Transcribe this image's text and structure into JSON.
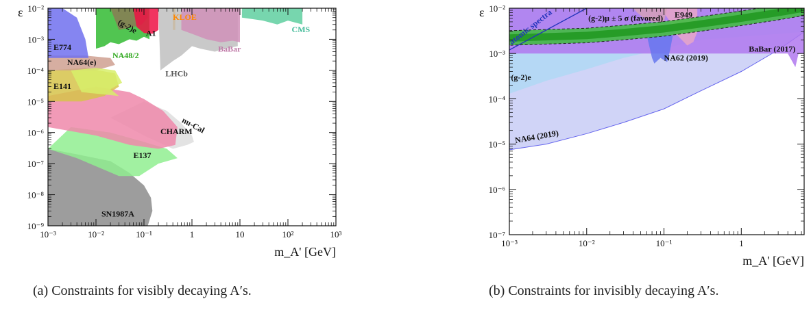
{
  "captions": {
    "a": "(a) Constraints for visibly decaying A′s.",
    "b": "(b) Constraints for invisibly decaying A′s."
  },
  "chart_data": [
    {
      "type": "area",
      "title": "",
      "xlabel": "m_A' [GeV]",
      "ylabel": "ε",
      "x_scale": "log",
      "y_scale": "log",
      "xlim": [
        0.001,
        1000
      ],
      "ylim": [
        1e-09,
        0.01
      ],
      "x_ticks": [
        {
          "v": 0.001,
          "label": "10⁻³"
        },
        {
          "v": 0.01,
          "label": "10⁻²"
        },
        {
          "v": 0.1,
          "label": "10⁻¹"
        },
        {
          "v": 1,
          "label": "1"
        },
        {
          "v": 10,
          "label": "10"
        },
        {
          "v": 100,
          "label": "10²"
        },
        {
          "v": 1000,
          "label": "10³"
        }
      ],
      "y_ticks": [
        {
          "v": 1e-09,
          "label": "10⁻⁹"
        },
        {
          "v": 1e-08,
          "label": "10⁻⁸"
        },
        {
          "v": 1e-07,
          "label": "10⁻⁷"
        },
        {
          "v": 1e-06,
          "label": "10⁻⁶"
        },
        {
          "v": 1e-05,
          "label": "10⁻⁵"
        },
        {
          "v": 0.0001,
          "label": "10⁻⁴"
        },
        {
          "v": 0.001,
          "label": "10⁻³"
        },
        {
          "v": 0.01,
          "label": "10⁻²"
        }
      ],
      "regions": [
        {
          "name": "SN1987A",
          "color": "#8c8c8c",
          "label_color": "#111111",
          "label_at": [
            0.013,
            2e-09
          ],
          "polygon": [
            [
              0.001,
              1e-09
            ],
            [
              0.001,
              3e-07
            ],
            [
              0.004,
              2e-07
            ],
            [
              0.02,
              1.2e-07
            ],
            [
              0.05,
              5e-08
            ],
            [
              0.1,
              2e-08
            ],
            [
              0.14,
              8e-09
            ],
            [
              0.15,
              3e-09
            ],
            [
              0.12,
              1e-09
            ]
          ]
        },
        {
          "name": "E137",
          "color": "#90ee90",
          "label_color": "#111111",
          "label_at": [
            0.06,
            1.5e-07
          ],
          "polygon": [
            [
              0.001,
              3e-07
            ],
            [
              0.003,
              1.5e-06
            ],
            [
              0.02,
              1e-06
            ],
            [
              0.1,
              5e-07
            ],
            [
              0.3,
              3e-07
            ],
            [
              0.5,
              1.5e-07
            ],
            [
              0.2,
              1e-07
            ],
            [
              0.08,
              4e-08
            ],
            [
              0.03,
              4e-08
            ],
            [
              0.004,
              1.5e-07
            ]
          ]
        },
        {
          "name": "nu-Cal",
          "color": "#dedede",
          "label_color": "#111111",
          "label_at": [
            0.6,
            2.2e-06
          ],
          "rotate": 28,
          "polygon": [
            [
              0.02,
              3e-06
            ],
            [
              0.1,
              1e-05
            ],
            [
              0.3,
              5e-06
            ],
            [
              0.6,
              2e-06
            ],
            [
              1.0,
              8e-07
            ],
            [
              1.1,
              5e-07
            ],
            [
              0.8,
              4e-07
            ],
            [
              0.4,
              3e-07
            ],
            [
              0.1,
              8e-07
            ]
          ]
        },
        {
          "name": "CHARM",
          "color": "#ee88aa",
          "label_color": "#111111",
          "label_at": [
            0.22,
            9e-07
          ],
          "polygon": [
            [
              0.001,
              1.5e-06
            ],
            [
              0.001,
              1.5e-05
            ],
            [
              0.01,
              3e-05
            ],
            [
              0.05,
              2e-05
            ],
            [
              0.1,
              1.2e-05
            ],
            [
              0.25,
              5e-06
            ],
            [
              0.5,
              1.5e-06
            ],
            [
              0.45,
              4e-07
            ],
            [
              0.2,
              3e-07
            ],
            [
              0.05,
              4e-07
            ],
            [
              0.01,
              8e-07
            ]
          ]
        },
        {
          "name": "E141",
          "color": "#d6c34a",
          "label_color": "#111111",
          "label_at": [
            0.0013,
            2.5e-05
          ],
          "polygon": [
            [
              0.001,
              1e-05
            ],
            [
              0.001,
              0.0001
            ],
            [
              0.006,
              0.00012
            ],
            [
              0.025,
              8e-05
            ],
            [
              0.03,
              3e-05
            ],
            [
              0.015,
              1.5e-05
            ],
            [
              0.005,
              1e-05
            ]
          ]
        },
        {
          "name": "NA64(e)",
          "color": "#cfa090",
          "label_color": "#111111",
          "label_at": [
            0.0025,
            0.00015
          ],
          "polygon": [
            [
              0.001,
              0.0001
            ],
            [
              0.001,
              0.0003
            ],
            [
              0.006,
              0.0003
            ],
            [
              0.02,
              0.00025
            ],
            [
              0.025,
              0.00015
            ],
            [
              0.01,
              0.0001
            ]
          ]
        },
        {
          "name": "E774",
          "color": "#7070ee",
          "label_color": "#111111",
          "label_at": [
            0.0013,
            0.00045
          ],
          "polygon": [
            [
              0.001,
              0.00025
            ],
            [
              0.001,
              0.01
            ],
            [
              0.002,
              0.01
            ],
            [
              0.004,
              0.005
            ],
            [
              0.006,
              0.001
            ],
            [
              0.007,
              0.00025
            ]
          ]
        },
        {
          "name": "",
          "color": "#d7ef6a",
          "polygon": [
            [
              0.003,
              0.0001
            ],
            [
              0.01,
              0.00012
            ],
            [
              0.025,
              0.0001
            ],
            [
              0.035,
              4e-05
            ],
            [
              0.02,
              2.5e-05
            ],
            [
              0.03,
              1.5e-05
            ],
            [
              0.005,
              2e-05
            ]
          ]
        },
        {
          "name": "NA48/2",
          "color": "#33bb33",
          "label_color": "#33aa22",
          "label_at": [
            0.022,
            0.00025
          ],
          "polygon": [
            [
              0.01,
              0.01
            ],
            [
              0.13,
              0.01
            ],
            [
              0.13,
              0.001
            ],
            [
              0.1,
              0.0012
            ],
            [
              0.07,
              0.0009
            ],
            [
              0.05,
              0.001
            ],
            [
              0.03,
              0.0007
            ],
            [
              0.02,
              0.0008
            ],
            [
              0.015,
              0.0006
            ],
            [
              0.01,
              0.0005
            ]
          ]
        },
        {
          "name": "(g-2)e",
          "color": "#8a7a55",
          "label_color": "#111111",
          "label_at": [
            0.028,
            0.0032
          ],
          "rotate": 30,
          "polygon": [
            [
              0.02,
              0.01
            ],
            [
              0.11,
              0.01
            ],
            [
              0.12,
              0.005
            ],
            [
              0.09,
              0.003
            ],
            [
              0.06,
              0.0025
            ],
            [
              0.03,
              0.002
            ]
          ]
        },
        {
          "name": "A1",
          "color": "#ee1144",
          "label_color": "#111111",
          "label_at": [
            0.11,
            0.0013
          ],
          "polygon": [
            [
              0.06,
              0.01
            ],
            [
              0.2,
              0.01
            ],
            [
              0.2,
              0.002
            ],
            [
              0.15,
              0.0015
            ],
            [
              0.1,
              0.0016
            ],
            [
              0.07,
              0.0025
            ]
          ]
        },
        {
          "name": "KLOE",
          "color": "#ff9900",
          "label_color": "#ff8800",
          "label_at": [
            0.4,
            0.0042
          ],
          "polygon": [
            [
              0.4,
              0.01
            ],
            [
              0.45,
              0.01
            ],
            [
              0.45,
              0.002
            ],
            [
              0.4,
              0.002
            ]
          ]
        },
        {
          "name": "LHCb",
          "color": "#c0c0c0",
          "label_color": "#555555",
          "label_at": [
            0.28,
            6.5e-05
          ],
          "polygon": [
            [
              0.2,
              0.01
            ],
            [
              9,
              0.01
            ],
            [
              9,
              0.0006
            ],
            [
              5,
              0.0005
            ],
            [
              3,
              0.0004
            ],
            [
              1.5,
              0.0005
            ],
            [
              1,
              0.0006
            ],
            [
              0.6,
              0.0003
            ],
            [
              0.4,
              0.0002
            ],
            [
              0.22,
              0.0001
            ]
          ]
        },
        {
          "name": "BaBar",
          "color": "#d091b8",
          "label_color": "#c07aa8",
          "label_at": [
            3.5,
            0.0004
          ],
          "polygon": [
            [
              0.6,
              0.01
            ],
            [
              10,
              0.01
            ],
            [
              10,
              0.0008
            ],
            [
              7,
              0.0009
            ],
            [
              4,
              0.0008
            ],
            [
              2,
              0.001
            ],
            [
              1,
              0.0015
            ],
            [
              0.6,
              0.002
            ]
          ]
        },
        {
          "name": "CMS",
          "color": "#5fcfa0",
          "label_color": "#44bb99",
          "label_at": [
            120,
            0.0017
          ],
          "polygon": [
            [
              11,
              0.01
            ],
            [
              200,
              0.01
            ],
            [
              200,
              0.003
            ],
            [
              100,
              0.004
            ],
            [
              60,
              0.003
            ],
            [
              30,
              0.004
            ],
            [
              11,
              0.005
            ]
          ]
        }
      ]
    },
    {
      "type": "area",
      "title": "",
      "xlabel": "m_A' [GeV]",
      "ylabel": "ε",
      "x_scale": "log",
      "y_scale": "log",
      "xlim": [
        0.001,
        6.5
      ],
      "ylim": [
        1e-07,
        0.01
      ],
      "x_ticks": [
        {
          "v": 0.001,
          "label": "10⁻³"
        },
        {
          "v": 0.01,
          "label": "10⁻²"
        },
        {
          "v": 0.1,
          "label": "10⁻¹"
        },
        {
          "v": 1,
          "label": "1"
        }
      ],
      "y_ticks": [
        {
          "v": 1e-07,
          "label": "10⁻⁷"
        },
        {
          "v": 1e-06,
          "label": "10⁻⁶"
        },
        {
          "v": 1e-05,
          "label": "10⁻⁵"
        },
        {
          "v": 0.0001,
          "label": "10⁻⁴"
        },
        {
          "v": 0.001,
          "label": "10⁻³"
        },
        {
          "v": 0.01,
          "label": "10⁻²"
        }
      ],
      "regions": [
        {
          "name": "NA64 (2019)",
          "color": "#c8cdf6",
          "stroke": "#6666ee",
          "label_color": "#111111",
          "label_at": [
            0.0012,
            1.05e-05
          ],
          "rotate": -10,
          "label_size": 10,
          "polygon": [
            [
              0.001,
              7.5e-06
            ],
            [
              0.003,
              1e-05
            ],
            [
              0.01,
              1.7e-05
            ],
            [
              0.03,
              3e-05
            ],
            [
              0.1,
              6e-05
            ],
            [
              0.3,
              0.00015
            ],
            [
              1,
              0.0004
            ],
            [
              3,
              0.0012
            ],
            [
              6.5,
              0.003
            ],
            [
              6.5,
              0.01
            ],
            [
              0.001,
              0.01
            ]
          ]
        },
        {
          "name": "(g-2)e",
          "color": "#b0d8f5",
          "label_color": "#111111",
          "label_at": [
            0.00105,
            0.00026
          ],
          "label_size": 13,
          "bold": false,
          "polygon": [
            [
              0.001,
              0.00013
            ],
            [
              0.003,
              0.00025
            ],
            [
              0.01,
              0.00045
            ],
            [
              0.03,
              0.0008
            ],
            [
              0.1,
              0.0013
            ],
            [
              0.3,
              0.002
            ],
            [
              6.5,
              0.003
            ],
            [
              6.5,
              0.01
            ],
            [
              0.001,
              0.01
            ]
          ]
        },
        {
          "name": "BaBar (2017)",
          "color": "#b078ee",
          "label_color": "#111111",
          "label_at": [
            1.25,
            0.0011
          ],
          "bold": false,
          "label_size": 12,
          "polygon": [
            [
              0.001,
              0.001
            ],
            [
              0.001,
              0.01
            ],
            [
              6.5,
              0.01
            ],
            [
              6.5,
              0.001
            ],
            [
              5.5,
              0.001
            ],
            [
              5,
              0.0005
            ],
            [
              4,
              0.001
            ],
            [
              0.001,
              0.001
            ]
          ]
        },
        {
          "name": "NA62 (2019)",
          "color": "#6677ee",
          "label_color": "#111111",
          "label_at": [
            0.1,
            0.0007
          ],
          "label_size": 8,
          "polygon": [
            [
              0.06,
              0.0025
            ],
            [
              0.07,
              0.0008
            ],
            [
              0.075,
              0.0006
            ],
            [
              0.09,
              0.0008
            ],
            [
              0.11,
              0.00065
            ],
            [
              0.12,
              0.0012
            ],
            [
              0.13,
              0.0025
            ]
          ]
        },
        {
          "name": "E949",
          "color": "#e8a6c8",
          "label_color": "#111111",
          "label_at": [
            0.137,
            0.0063
          ],
          "bold": false,
          "label_size": 13,
          "polygon": [
            [
              0.1,
              0.01
            ],
            [
              0.27,
              0.01
            ],
            [
              0.27,
              0.003
            ],
            [
              0.24,
              0.0018
            ],
            [
              0.2,
              0.0015
            ],
            [
              0.17,
              0.002
            ],
            [
              0.14,
              0.0028
            ],
            [
              0.12,
              0.005
            ],
            [
              0.1,
              0.008
            ]
          ]
        },
        {
          "name": "",
          "color": "#d5a0b8",
          "polygon": [
            [
              0.04,
              0.01
            ],
            [
              0.11,
              0.01
            ],
            [
              0.1,
              0.005
            ],
            [
              0.07,
              0.005
            ],
            [
              0.055,
              0.006
            ],
            [
              0.045,
              0.008
            ]
          ]
        }
      ],
      "bands": [
        {
          "name": "(g-2)μ ± 5 σ (favored)",
          "label_color": "#111111",
          "label_at": [
            0.0105,
            0.0053
          ],
          "label_size": 11,
          "fill_outer": "#44bb44",
          "fill_inner": "#229922",
          "x": [
            0.001,
            0.01,
            0.03,
            0.1,
            0.3,
            1,
            3,
            6.5
          ],
          "center": [
            0.0022,
            0.0025,
            0.0029,
            0.0035,
            0.0045,
            0.006,
            0.008,
            0.01
          ],
          "half_width_factor": 1.45
        }
      ],
      "lines": [
        {
          "name": "atomic spectra",
          "color": "#2233bb",
          "label_color": "#2233bb",
          "label_at": [
            0.00108,
            0.00155
          ],
          "rotate": -38,
          "label_size": 8,
          "points": [
            [
              0.001,
              0.0012
            ],
            [
              0.01,
              0.01
            ]
          ]
        }
      ]
    }
  ]
}
